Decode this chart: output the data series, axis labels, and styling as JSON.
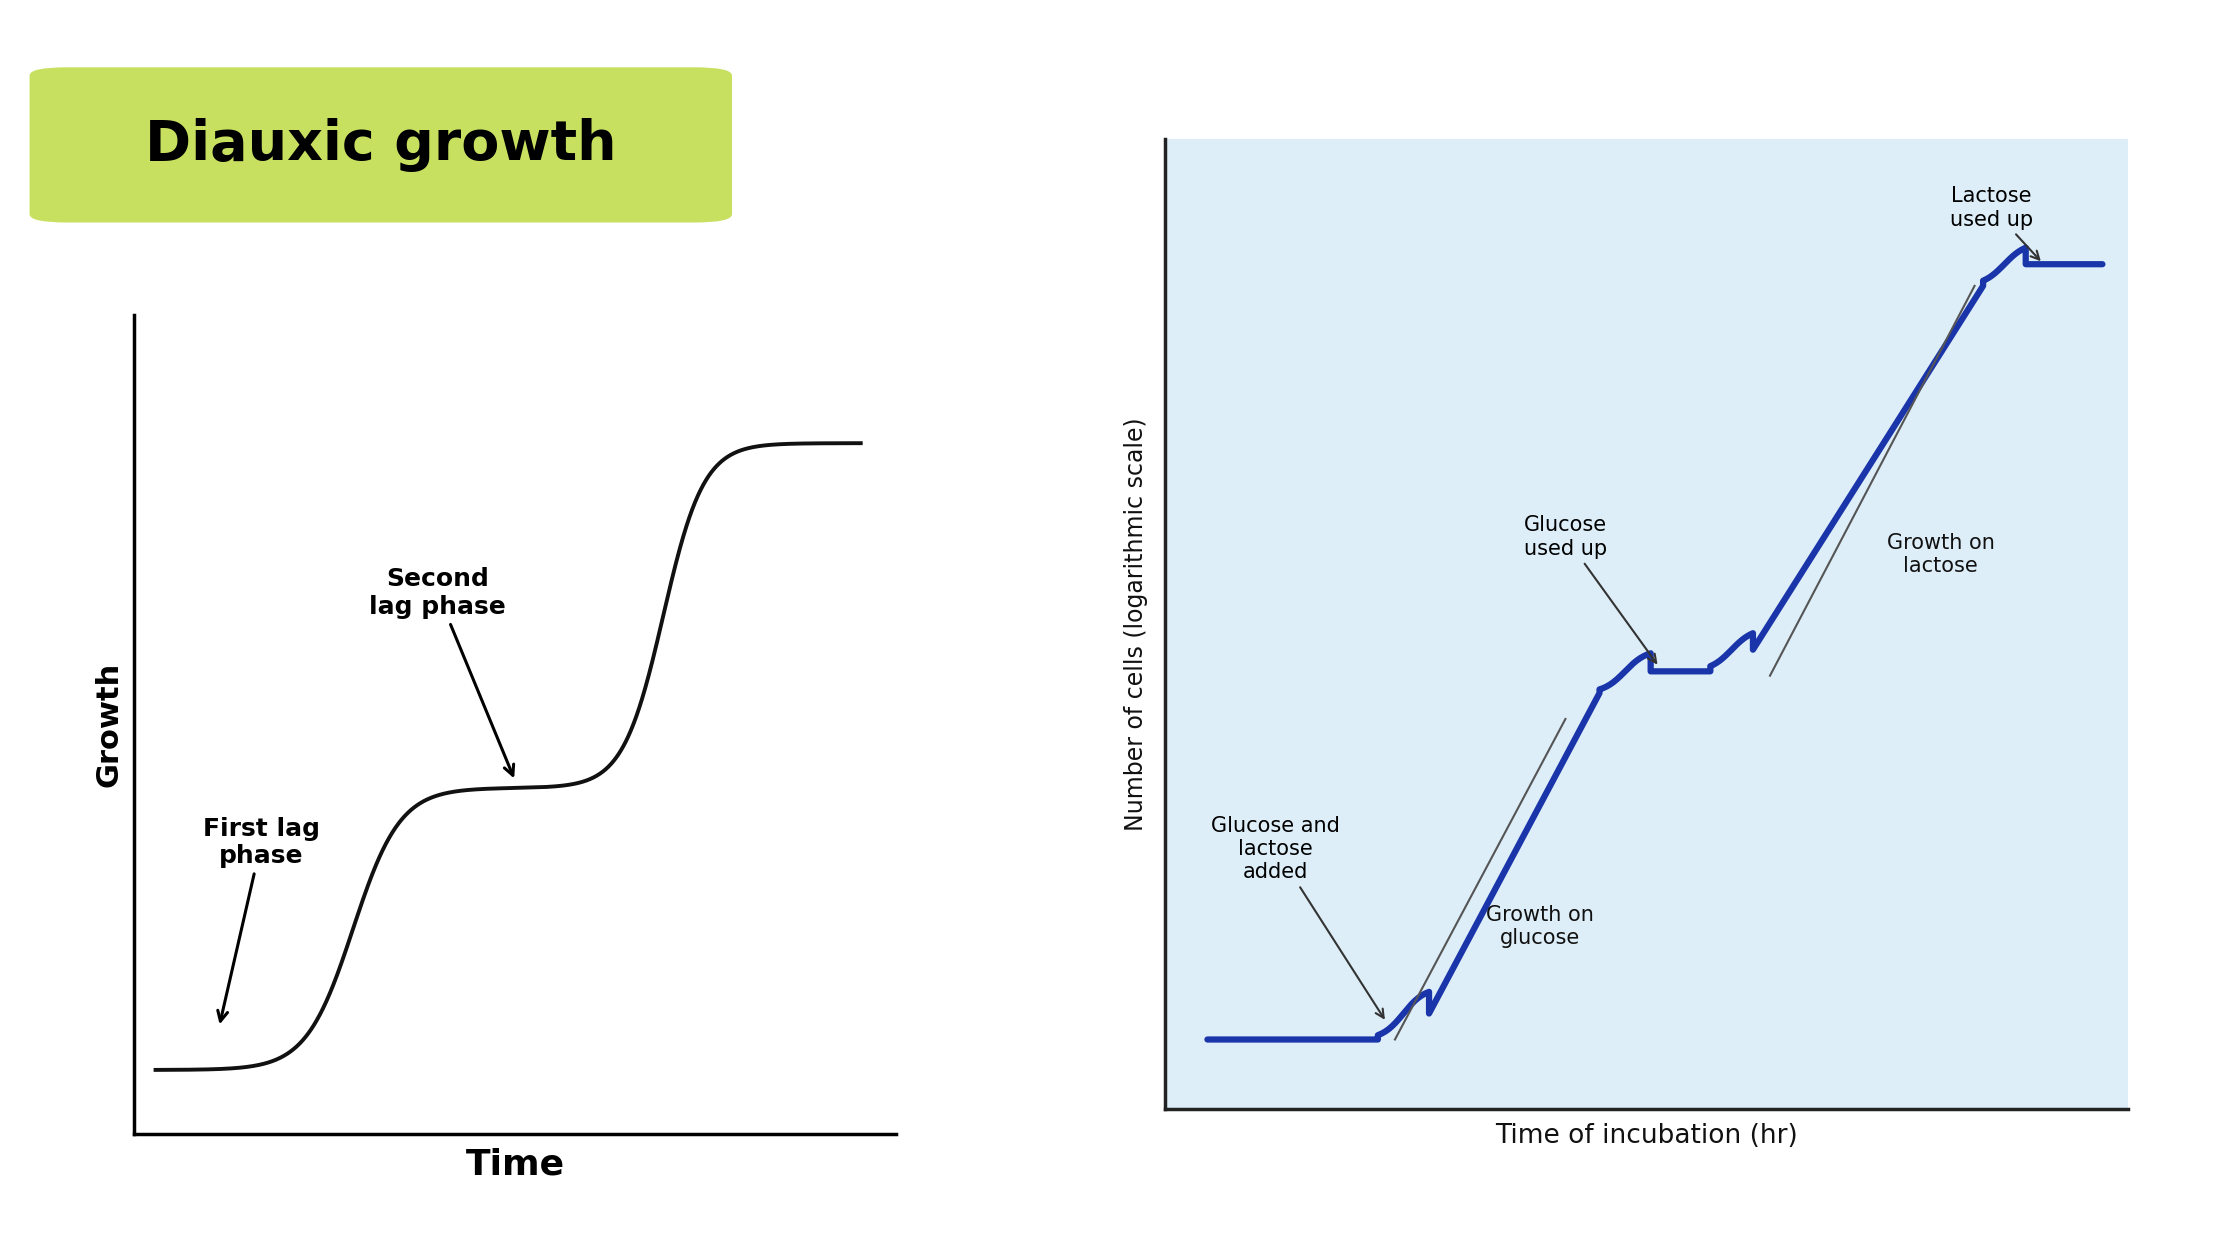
{
  "title_text": "Diauxic growth",
  "title_bg_color": "#c8e060",
  "title_text_color": "#000000",
  "title_fontsize": 40,
  "bg_color": "#ffffff",
  "left_chart": {
    "ylabel": "Growth",
    "xlabel": "Time",
    "curve_color": "#111111",
    "lw": 2.8,
    "annotation_first_lag": "First lag\nphase",
    "annotation_second_lag": "Second\nlag phase",
    "arrow_color": "#000000"
  },
  "right_chart": {
    "bg_color": "#ddeef8",
    "border_color": "#555555",
    "ylabel": "Number of cells (logarithmic scale)",
    "xlabel": "Time of incubation (hr)",
    "curve_color": "#1a35aa",
    "lw": 4.5,
    "label_glucose_added": "Glucose and\nlactose\nadded",
    "label_glucose_used": "Glucose\nused up",
    "label_lactose_used": "Lactose\nused up",
    "label_growth_glucose": "Growth on\nglucose",
    "label_growth_lactose": "Growth on\nlactose"
  }
}
